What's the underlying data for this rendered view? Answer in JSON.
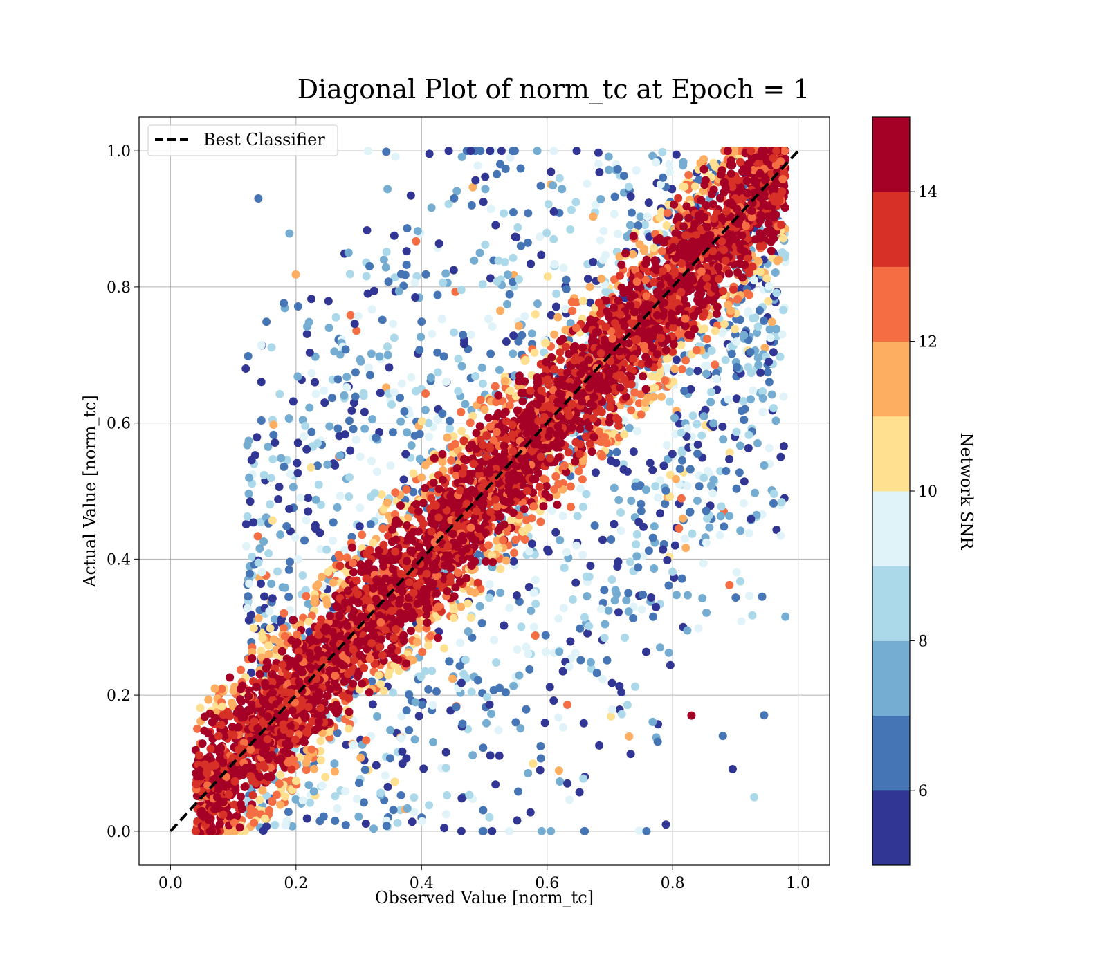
{
  "chart_data": {
    "type": "scatter",
    "title": "Diagonal Plot of norm_tc at Epoch = 1",
    "xlabel": "Observed Value [norm_tc]",
    "ylabel": "Actual Value [norm_tc]",
    "xlim": [
      -0.05,
      1.05
    ],
    "ylim": [
      -0.05,
      1.05
    ],
    "xticks": [
      "0.0",
      "0.2",
      "0.4",
      "0.6",
      "0.8",
      "1.0"
    ],
    "yticks": [
      "0.0",
      "0.2",
      "0.4",
      "0.6",
      "0.8",
      "1.0"
    ],
    "grid": true,
    "legend": {
      "position": "upper-left",
      "entries": [
        {
          "label": "Best Classifier",
          "style": "black dashed line"
        }
      ]
    },
    "reference_line": {
      "name": "Best Classifier",
      "x": [
        0.0,
        1.0
      ],
      "y": [
        0.0,
        1.0
      ],
      "color": "#000000",
      "dash": "dashed"
    },
    "colorbar": {
      "label": "Network SNR",
      "range": [
        5,
        15
      ],
      "levels": 10,
      "ticks": [
        "6",
        "8",
        "10",
        "12",
        "14"
      ],
      "colors": [
        "#313695",
        "#4575b4",
        "#74add1",
        "#abd9e9",
        "#e0f3f8",
        "#fee090",
        "#fdae61",
        "#f46d43",
        "#d73027",
        "#a50026"
      ]
    },
    "series": [
      {
        "marker": "circle",
        "color_by": "Network SNR",
        "description": "high-SNR points cluster tightly along the diagonal; low-SNR points scatter widely",
        "points": [
          [
            0.07,
            0.05,
            15
          ],
          [
            0.1,
            0.09,
            14
          ],
          [
            0.15,
            0.17,
            14
          ],
          [
            0.2,
            0.19,
            15
          ],
          [
            0.25,
            0.27,
            13
          ],
          [
            0.3,
            0.29,
            15
          ],
          [
            0.35,
            0.37,
            14
          ],
          [
            0.4,
            0.41,
            15
          ],
          [
            0.45,
            0.46,
            14
          ],
          [
            0.5,
            0.49,
            15
          ],
          [
            0.55,
            0.56,
            13
          ],
          [
            0.6,
            0.61,
            15
          ],
          [
            0.65,
            0.64,
            14
          ],
          [
            0.7,
            0.71,
            15
          ],
          [
            0.75,
            0.74,
            14
          ],
          [
            0.8,
            0.81,
            15
          ],
          [
            0.85,
            0.86,
            14
          ],
          [
            0.9,
            0.9,
            15
          ],
          [
            0.95,
            0.96,
            14
          ],
          [
            0.97,
            0.99,
            15
          ],
          [
            0.14,
            0.93,
            6
          ],
          [
            0.23,
            0.66,
            5
          ],
          [
            0.34,
            0.84,
            7
          ],
          [
            0.48,
            0.92,
            6
          ],
          [
            0.62,
            0.96,
            8
          ],
          [
            0.71,
            0.98,
            9
          ],
          [
            0.55,
            0.16,
            6
          ],
          [
            0.66,
            0.08,
            5
          ],
          [
            0.78,
            0.27,
            7
          ],
          [
            0.88,
            0.14,
            6
          ],
          [
            0.93,
            0.05,
            8
          ],
          [
            0.82,
            0.43,
            9
          ],
          [
            0.12,
            0.68,
            5
          ],
          [
            0.83,
            0.17,
            15
          ],
          [
            0.4,
            0.02,
            6
          ],
          [
            0.6,
            0.55,
            10
          ]
        ]
      }
    ]
  }
}
